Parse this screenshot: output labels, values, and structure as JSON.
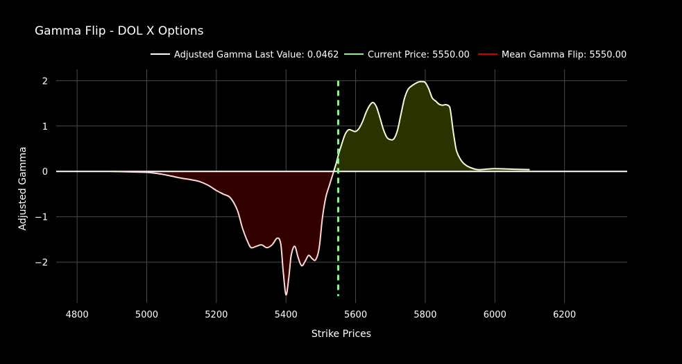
{
  "chart_data": {
    "type": "area",
    "title": "Gamma Flip - DOL X Options",
    "xlabel": "Strike Prices",
    "ylabel": "Adjusted Gamma",
    "xlim": [
      4740,
      6380
    ],
    "ylim": [
      -2.9,
      2.25
    ],
    "x_ticks": [
      4800,
      5000,
      5200,
      5400,
      5600,
      5800,
      6000,
      6200
    ],
    "x_tick_labels": [
      "4800",
      "5000",
      "5200",
      "5400",
      "5600",
      "5800",
      "6000",
      "6200"
    ],
    "y_ticks": [
      2,
      1,
      0,
      -1,
      -2
    ],
    "y_tick_labels": [
      "2",
      "1",
      "0",
      "−1",
      "−2"
    ],
    "grid": true,
    "legend_position": "top",
    "colors": {
      "background": "#000000",
      "grid": "#4a4a4a",
      "gamma_line": "#ffffff",
      "negative_fill": "#330000",
      "positive_fill": "#2a3300",
      "current_price": "#90ee90",
      "mean_gamma_flip": "#cc0000",
      "zero_line": "#ffffff"
    },
    "series": [
      {
        "name": "Adjusted Gamma Last Value: 0.0462",
        "x": [
          4900,
          4950,
          5000,
          5025,
          5050,
          5075,
          5100,
          5125,
          5150,
          5175,
          5200,
          5220,
          5240,
          5260,
          5275,
          5290,
          5300,
          5315,
          5330,
          5345,
          5360,
          5375,
          5385,
          5392,
          5400,
          5408,
          5415,
          5425,
          5435,
          5445,
          5455,
          5465,
          5475,
          5485,
          5495,
          5505,
          5515,
          5525,
          5535,
          5545,
          5550,
          5560,
          5570,
          5580,
          5590,
          5600,
          5610,
          5620,
          5630,
          5640,
          5650,
          5660,
          5670,
          5680,
          5690,
          5700,
          5710,
          5720,
          5730,
          5740,
          5750,
          5760,
          5770,
          5780,
          5790,
          5800,
          5810,
          5820,
          5830,
          5840,
          5850,
          5860,
          5870,
          5875,
          5880,
          5885,
          5890,
          5900,
          5910,
          5925,
          5950,
          5975,
          6000,
          6050,
          6100
        ],
        "values": [
          0.0,
          -0.01,
          -0.02,
          -0.04,
          -0.07,
          -0.11,
          -0.15,
          -0.18,
          -0.22,
          -0.3,
          -0.42,
          -0.5,
          -0.58,
          -0.85,
          -1.25,
          -1.55,
          -1.68,
          -1.65,
          -1.62,
          -1.68,
          -1.62,
          -1.47,
          -1.6,
          -2.2,
          -2.72,
          -2.35,
          -1.85,
          -1.65,
          -1.9,
          -2.08,
          -1.98,
          -1.85,
          -1.92,
          -1.95,
          -1.7,
          -1.0,
          -0.55,
          -0.3,
          -0.05,
          0.2,
          0.35,
          0.6,
          0.82,
          0.92,
          0.9,
          0.88,
          0.95,
          1.1,
          1.3,
          1.45,
          1.52,
          1.42,
          1.18,
          0.92,
          0.75,
          0.7,
          0.72,
          0.9,
          1.25,
          1.6,
          1.8,
          1.88,
          1.93,
          1.97,
          1.98,
          1.96,
          1.82,
          1.62,
          1.55,
          1.48,
          1.46,
          1.47,
          1.42,
          1.2,
          0.9,
          0.65,
          0.45,
          0.28,
          0.18,
          0.1,
          0.04,
          0.05,
          0.06,
          0.05,
          0.04
        ]
      },
      {
        "name": "Current Price: 5550.00",
        "x": 5550
      },
      {
        "name": "Mean Gamma Flip: 5550.00",
        "x": 5550
      }
    ]
  }
}
